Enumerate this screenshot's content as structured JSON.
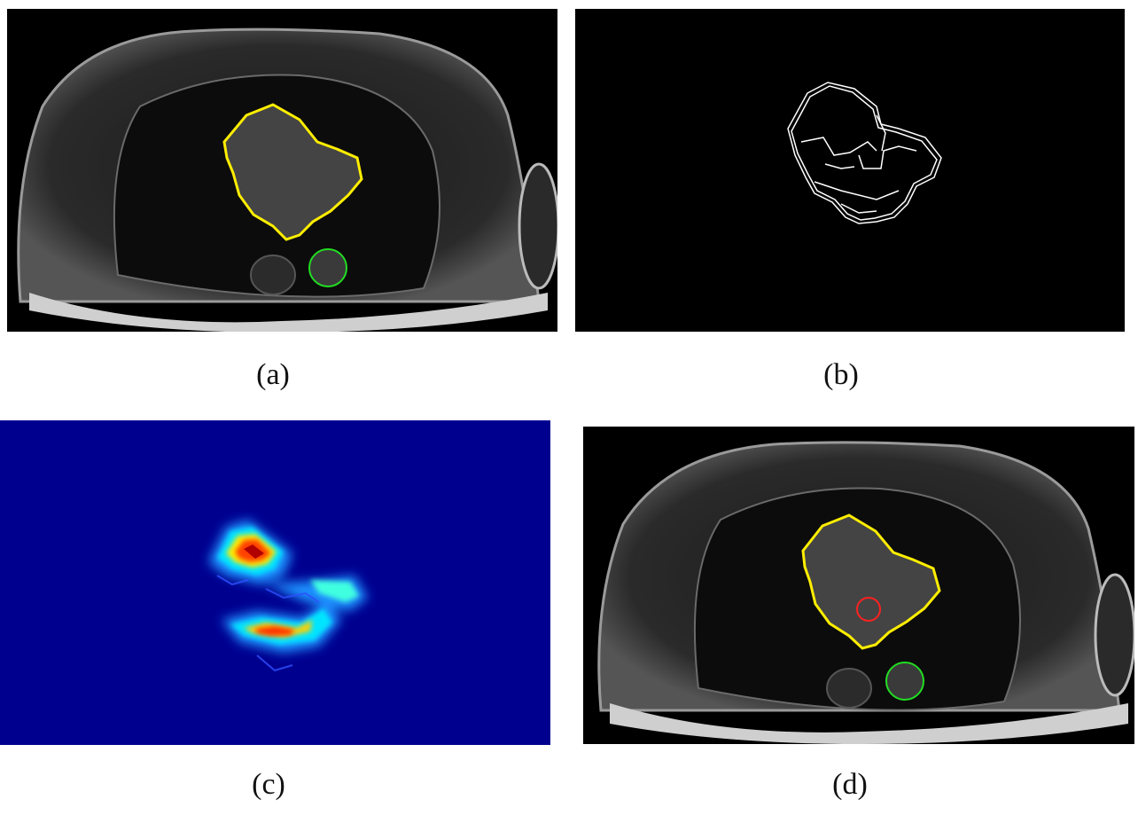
{
  "figure": {
    "panels": [
      {
        "id": "a",
        "caption": "(a)",
        "content": "mri-axial-slice-with-contours"
      },
      {
        "id": "b",
        "caption": "(b)",
        "content": "edge-map"
      },
      {
        "id": "c",
        "caption": "(c)",
        "content": "heatmap"
      },
      {
        "id": "d",
        "caption": "(d)",
        "content": "mri-axial-slice-with-contours"
      }
    ],
    "colors": {
      "heart_contour": "#ffee00",
      "aorta_circle": "#22dd22",
      "seed_circle": "#ff2020",
      "heatmap_background": "#00008f",
      "edges": "#ffffff"
    }
  }
}
